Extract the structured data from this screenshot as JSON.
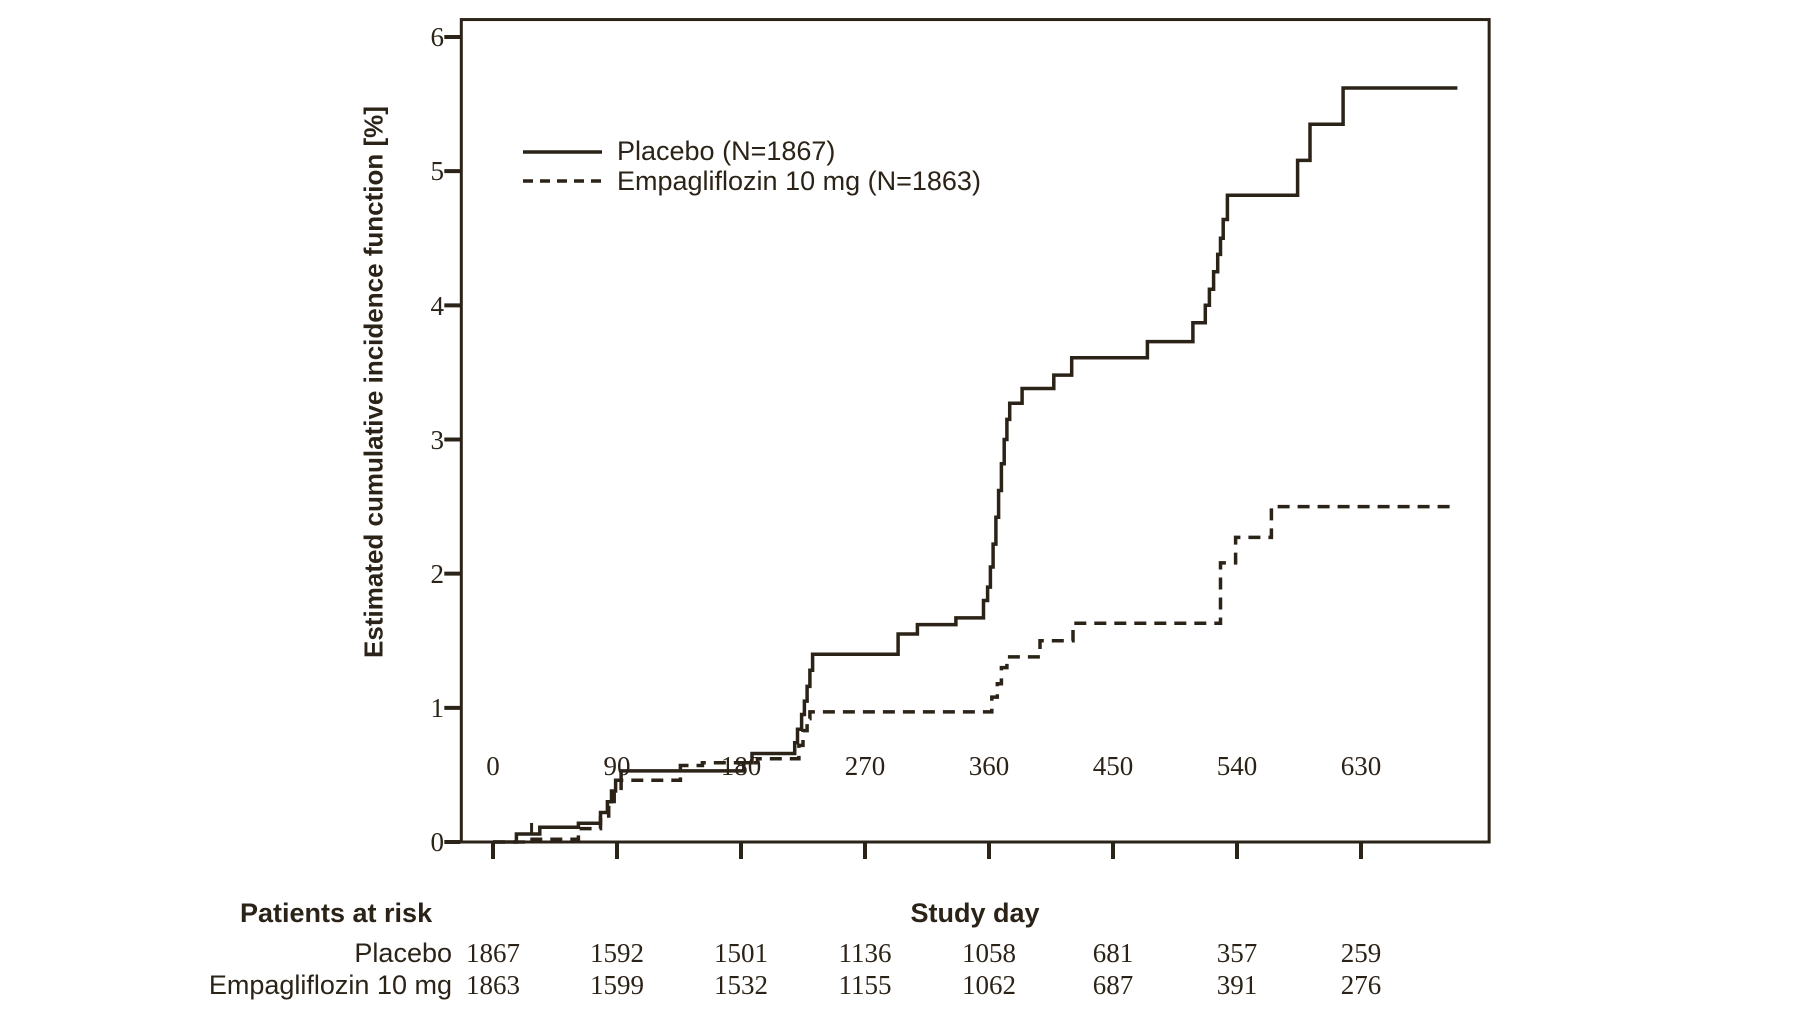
{
  "colors": {
    "ink": "#2b2318",
    "background": "#ffffff"
  },
  "chart_data": {
    "type": "line",
    "subtype": "step-cumulative-incidence",
    "title": "",
    "xlabel": "Study day",
    "ylabel": "Estimated cumulative incidence function [%]",
    "xlim": [
      -23,
      723
    ],
    "ylim": [
      0,
      6.13
    ],
    "grid": false,
    "legend_position": "top-left-inside",
    "x_ticks": [
      0,
      90,
      180,
      270,
      360,
      450,
      540,
      630
    ],
    "y_ticks": [
      0,
      1,
      2,
      3,
      4,
      5,
      6
    ],
    "series": [
      {
        "name": "Placebo (N=1867)",
        "style": "solid",
        "points": [
          [
            0,
            0
          ],
          [
            17,
            0.06
          ],
          [
            34,
            0.11
          ],
          [
            62,
            0.14
          ],
          [
            78,
            0.22
          ],
          [
            83,
            0.3
          ],
          [
            86,
            0.38
          ],
          [
            89,
            0.46
          ],
          [
            93,
            0.53
          ],
          [
            182,
            0.59
          ],
          [
            188,
            0.66
          ],
          [
            219,
            0.74
          ],
          [
            221,
            0.84
          ],
          [
            224,
            0.95
          ],
          [
            226,
            1.05
          ],
          [
            228,
            1.16
          ],
          [
            230,
            1.28
          ],
          [
            232,
            1.4
          ],
          [
            294,
            1.55
          ],
          [
            308,
            1.62
          ],
          [
            336,
            1.67
          ],
          [
            356,
            1.8
          ],
          [
            359,
            1.9
          ],
          [
            361,
            2.05
          ],
          [
            363,
            2.22
          ],
          [
            365,
            2.42
          ],
          [
            367,
            2.62
          ],
          [
            369,
            2.82
          ],
          [
            371,
            3.0
          ],
          [
            373,
            3.15
          ],
          [
            375,
            3.27
          ],
          [
            384,
            3.38
          ],
          [
            407,
            3.48
          ],
          [
            420,
            3.61
          ],
          [
            475,
            3.73
          ],
          [
            508,
            3.87
          ],
          [
            517,
            4.0
          ],
          [
            520,
            4.12
          ],
          [
            523,
            4.25
          ],
          [
            526,
            4.38
          ],
          [
            528,
            4.5
          ],
          [
            530,
            4.64
          ],
          [
            533,
            4.82
          ],
          [
            584,
            5.08
          ],
          [
            593,
            5.35
          ],
          [
            617,
            5.62
          ],
          [
            700,
            5.62
          ]
        ],
        "censor_marks": [
          [
            28,
            0.06
          ]
        ]
      },
      {
        "name": "Empagliflozin 10 mg (N=1863)",
        "style": "dashed",
        "points": [
          [
            0,
            0
          ],
          [
            22,
            0.02
          ],
          [
            62,
            0.1
          ],
          [
            78,
            0.18
          ],
          [
            84,
            0.28
          ],
          [
            88,
            0.38
          ],
          [
            93,
            0.46
          ],
          [
            136,
            0.57
          ],
          [
            152,
            0.59
          ],
          [
            192,
            0.62
          ],
          [
            222,
            0.72
          ],
          [
            225,
            0.83
          ],
          [
            228,
            0.92
          ],
          [
            230,
            0.97
          ],
          [
            362,
            1.08
          ],
          [
            366,
            1.18
          ],
          [
            369,
            1.3
          ],
          [
            373,
            1.38
          ],
          [
            397,
            1.5
          ],
          [
            421,
            1.63
          ],
          [
            528,
            2.08
          ],
          [
            539,
            2.27
          ],
          [
            565,
            2.5
          ],
          [
            700,
            2.5
          ]
        ],
        "censor_marks": []
      }
    ]
  },
  "legend": {
    "items": [
      {
        "label": "Placebo (N=1867)",
        "line_style": "solid"
      },
      {
        "label": "Empagliflozin 10 mg (N=1863)",
        "line_style": "dashed"
      }
    ]
  },
  "risk_table": {
    "header": "Patients at risk",
    "axis_title": "Study day",
    "days": [
      0,
      90,
      180,
      270,
      360,
      450,
      540,
      630
    ],
    "rows": [
      {
        "label": "Placebo",
        "counts": [
          "1867",
          "1592",
          "1501",
          "1136",
          "1058",
          "681",
          "357",
          "259"
        ]
      },
      {
        "label": "Empagliflozin 10 mg",
        "counts": [
          "1863",
          "1599",
          "1532",
          "1155",
          "1062",
          "687",
          "391",
          "276"
        ]
      }
    ]
  }
}
